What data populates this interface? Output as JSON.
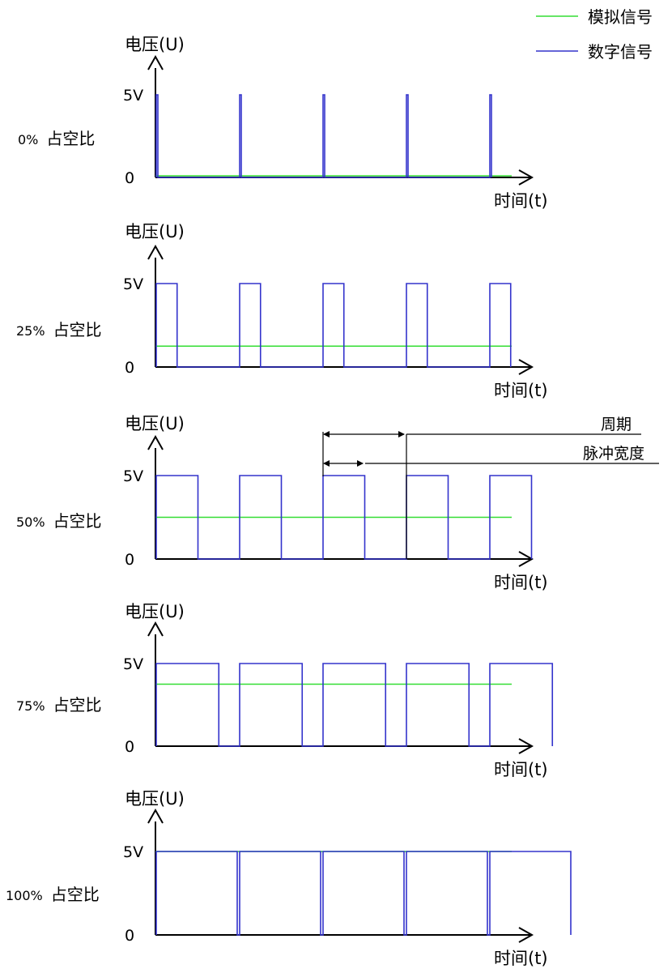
{
  "legend": {
    "analog": {
      "label": "模拟信号",
      "color": "#33dd33"
    },
    "digital": {
      "label": "数字信号",
      "color": "#3333cc"
    }
  },
  "axis_labels": {
    "y": "电压(U)",
    "x": "时间(t)",
    "tick_high": "5V",
    "tick_zero": "0"
  },
  "duty_word": "占空比",
  "annotations": {
    "period": "周期",
    "pulse_width": "脉冲宽度"
  },
  "chart_data": [
    {
      "type": "line",
      "duty_label": "0%",
      "duty": 0.0,
      "high_v": 5,
      "analog_v": 0.0
    },
    {
      "type": "line",
      "duty_label": "25%",
      "duty": 0.25,
      "high_v": 5,
      "analog_v": 1.25
    },
    {
      "type": "line",
      "duty_label": "50%",
      "duty": 0.5,
      "high_v": 5,
      "analog_v": 2.5
    },
    {
      "type": "line",
      "duty_label": "75%",
      "duty": 0.75,
      "high_v": 5,
      "analog_v": 3.75
    },
    {
      "type": "line",
      "duty_label": "100%",
      "duty": 1.0,
      "high_v": 5,
      "analog_v": 5.0
    }
  ]
}
